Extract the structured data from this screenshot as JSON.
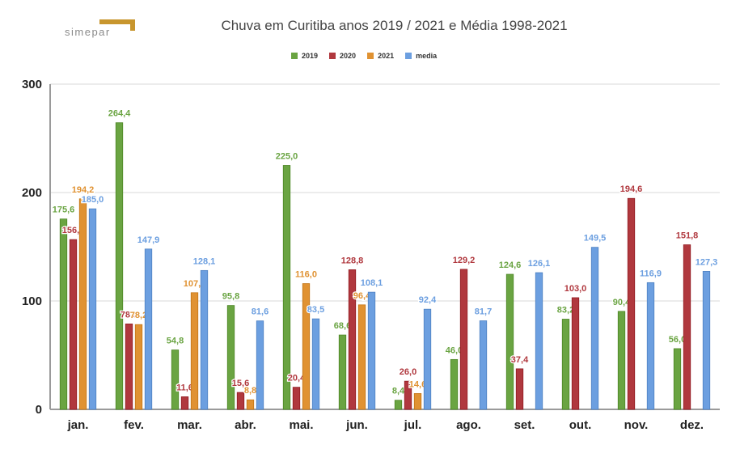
{
  "logo": {
    "text": "simepar",
    "accent_color": "#C8962E"
  },
  "chart_data": {
    "type": "bar",
    "title": "Chuva em Curitiba anos 2019 / 2021 e Média 1998-2021",
    "xlabel": "",
    "ylabel": "",
    "ylim": [
      0,
      300
    ],
    "yticks": [
      "0",
      "100",
      "200",
      "300"
    ],
    "grid": true,
    "legend_position": "top-center",
    "categories": [
      "jan.",
      "fev.",
      "mar.",
      "abr.",
      "mai.",
      "jun.",
      "jul.",
      "ago.",
      "set.",
      "out.",
      "nov.",
      "dez."
    ],
    "series": [
      {
        "name": "2019",
        "color": "#6AA442",
        "values": [
          175.6,
          264.4,
          54.8,
          95.8,
          225.0,
          68.6,
          8.4,
          46.0,
          124.6,
          83.2,
          90.4,
          56.0
        ],
        "labels": [
          "175,6",
          "264,4",
          "54,8",
          "95,8",
          "225,0",
          "68,6",
          "8,4",
          "46,0",
          "124,6",
          "83,2",
          "90,4",
          "56,0"
        ]
      },
      {
        "name": "2020",
        "color": "#B0383E",
        "values": [
          156.6,
          78.8,
          11.6,
          15.6,
          20.4,
          128.8,
          26.0,
          129.2,
          37.4,
          103.0,
          194.6,
          151.8
        ],
        "labels": [
          "156,6",
          "78,8",
          "11,6",
          "15,6",
          "20,4",
          "128,8",
          "26,0",
          "129,2",
          "37,4",
          "103,0",
          "194,6",
          "151,8"
        ]
      },
      {
        "name": "2021",
        "color": "#E09232",
        "values": [
          194.2,
          78.2,
          107.6,
          8.8,
          116.0,
          96.4,
          14.6,
          null,
          null,
          null,
          null,
          null
        ],
        "labels": [
          "194,2",
          "78,2",
          "107,6",
          "8,8",
          "116,0",
          "96,4",
          "14,6",
          null,
          null,
          null,
          null,
          null
        ]
      },
      {
        "name": "media",
        "color": "#6C9FE0",
        "values": [
          185.0,
          147.9,
          128.1,
          81.6,
          83.5,
          108.1,
          92.4,
          81.7,
          126.1,
          149.5,
          116.9,
          127.3
        ],
        "labels": [
          "185,0",
          "147,9",
          "128,1",
          "81,6",
          "83,5",
          "108,1",
          "92,4",
          "81,7",
          "126,1",
          "149,5",
          "116,9",
          "127,3"
        ]
      }
    ]
  }
}
